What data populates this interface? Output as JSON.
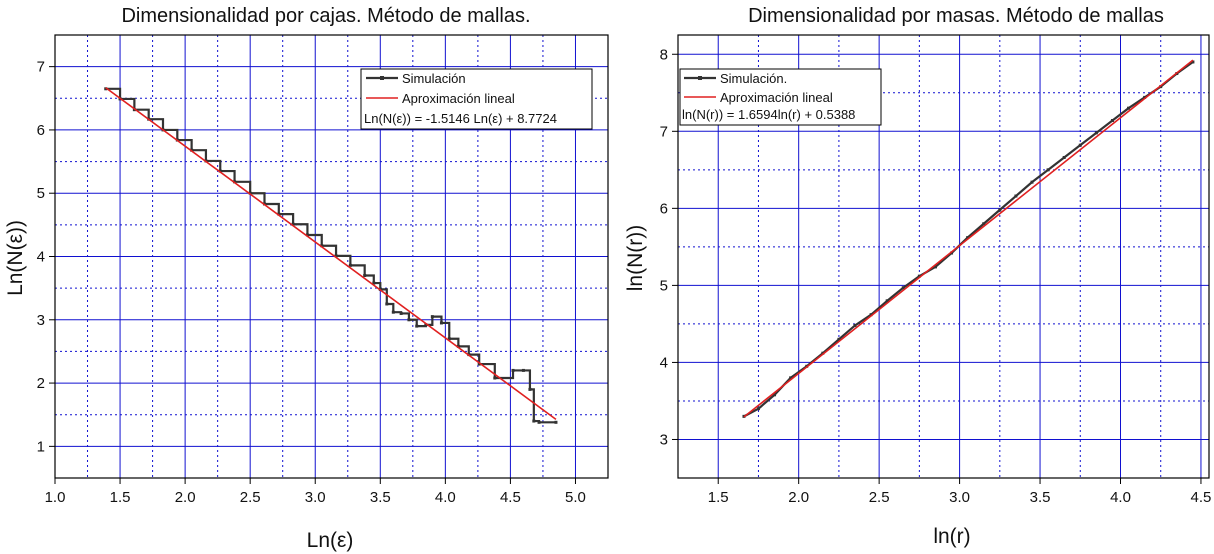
{
  "chart_data": [
    {
      "type": "line",
      "title": "Dimensionalidad por cajas. Método de mallas.",
      "xlabel": "Ln(ε)",
      "ylabel": "Ln(N(ε))",
      "xlim": [
        1.0,
        5.25
      ],
      "ylim": [
        0.5,
        7.5
      ],
      "xticks": [
        "1.0",
        "1.5",
        "2.0",
        "2.5",
        "3.0",
        "3.5",
        "4.0",
        "4.5",
        "5.0"
      ],
      "yticks": [
        "1",
        "2",
        "3",
        "4",
        "5",
        "6",
        "7"
      ],
      "grid": true,
      "legend_position": "top-right",
      "legend": {
        "simulation": "Simulación",
        "fit": "Aproximación lineal",
        "equation": "Ln(N(ε)) = -1.5146 Ln(ε) + 8.7724"
      },
      "series": [
        {
          "name": "Simulación",
          "kind": "step",
          "color": "#333333",
          "x": [
            1.39,
            1.5,
            1.61,
            1.72,
            1.83,
            1.94,
            2.05,
            2.16,
            2.27,
            2.38,
            2.5,
            2.61,
            2.72,
            2.83,
            2.94,
            3.05,
            3.16,
            3.27,
            3.38,
            3.45,
            3.5,
            3.55,
            3.6,
            3.66,
            3.72,
            3.78,
            3.85,
            3.9,
            3.97,
            4.03,
            4.1,
            4.18,
            4.26,
            4.38,
            4.52,
            4.6,
            4.65,
            4.68,
            4.72,
            4.85
          ],
          "y": [
            6.65,
            6.49,
            6.32,
            6.17,
            6.0,
            5.84,
            5.68,
            5.51,
            5.35,
            5.18,
            5.0,
            4.83,
            4.67,
            4.51,
            4.34,
            4.17,
            4.01,
            3.86,
            3.7,
            3.58,
            3.48,
            3.25,
            3.12,
            3.1,
            3.0,
            2.9,
            2.92,
            3.05,
            2.95,
            2.7,
            2.58,
            2.45,
            2.3,
            2.08,
            2.2,
            2.2,
            1.9,
            1.4,
            1.38,
            1.38
          ]
        },
        {
          "name": "Aproximación lineal",
          "kind": "fit",
          "color": "#e02020",
          "slope": -1.5146,
          "intercept": 8.7724,
          "x": [
            1.39,
            4.85
          ]
        }
      ]
    },
    {
      "type": "line",
      "title": "Dimensionalidad por masas. Método de mallas",
      "xlabel": "ln(r)",
      "ylabel": "ln(N(r))",
      "xlim": [
        1.25,
        4.55
      ],
      "ylim": [
        2.5,
        8.25
      ],
      "xticks": [
        "1.5",
        "2.0",
        "2.5",
        "3.0",
        "3.5",
        "4.0",
        "4.5"
      ],
      "yticks": [
        "3",
        "4",
        "5",
        "6",
        "7",
        "8"
      ],
      "grid": true,
      "legend_position": "top-left",
      "legend": {
        "simulation": "Simulación.",
        "fit": "Aproximación lineal",
        "equation": "ln(N(r)) = 1.6594ln(r) + 0.5388"
      },
      "series": [
        {
          "name": "Simulación.",
          "kind": "line",
          "color": "#333333",
          "x": [
            1.66,
            1.75,
            1.85,
            1.95,
            2.05,
            2.15,
            2.25,
            2.35,
            2.45,
            2.55,
            2.65,
            2.75,
            2.85,
            2.95,
            3.05,
            3.15,
            3.25,
            3.35,
            3.45,
            3.55,
            3.65,
            3.75,
            3.85,
            3.95,
            4.05,
            4.15,
            4.25,
            4.35,
            4.45
          ],
          "y": [
            3.3,
            3.4,
            3.58,
            3.8,
            3.95,
            4.12,
            4.3,
            4.48,
            4.62,
            4.8,
            4.97,
            5.12,
            5.24,
            5.42,
            5.62,
            5.8,
            5.98,
            6.16,
            6.34,
            6.5,
            6.66,
            6.82,
            6.98,
            7.14,
            7.3,
            7.44,
            7.58,
            7.75,
            7.9
          ]
        },
        {
          "name": "Aproximación lineal",
          "kind": "fit",
          "color": "#e02020",
          "slope": 1.6594,
          "intercept": 0.5388,
          "x": [
            1.66,
            4.45
          ]
        }
      ]
    }
  ]
}
